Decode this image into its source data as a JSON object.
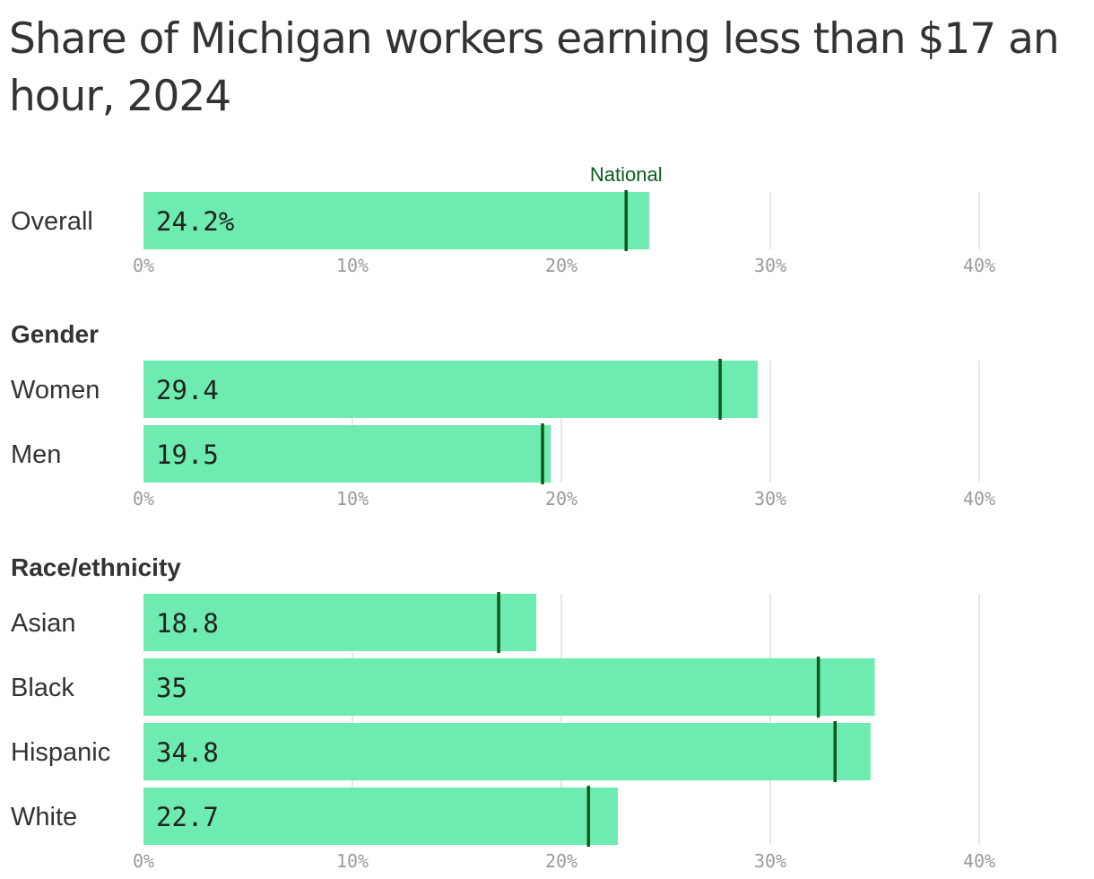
{
  "title": "Share of Michigan workers earning less than $17 an hour, 2024",
  "chart_data": {
    "type": "bar",
    "orientation": "horizontal",
    "title": "Share of Michigan workers earning less than $17 an hour, 2024",
    "xlim": [
      0,
      40
    ],
    "x_ticks": [
      "0%",
      "10%",
      "20%",
      "30%",
      "40%"
    ],
    "grid": true,
    "colors": {
      "bar": "#6eebb0",
      "national_marker": "#0b5a1e",
      "grid": "#dddddd",
      "tick": "#9a9a9a"
    },
    "marker_label": "National",
    "groups": [
      {
        "name": "",
        "items": [
          {
            "label": "Overall",
            "value": 24.2,
            "value_label": "24.2%",
            "national": 23.1
          }
        ]
      },
      {
        "name": "Gender",
        "items": [
          {
            "label": "Women",
            "value": 29.4,
            "value_label": "29.4",
            "national": 27.6
          },
          {
            "label": "Men",
            "value": 19.5,
            "value_label": "19.5",
            "national": 19.1
          }
        ]
      },
      {
        "name": "Race/ethnicity",
        "items": [
          {
            "label": "Asian",
            "value": 18.8,
            "value_label": "18.8",
            "national": 17.0
          },
          {
            "label": "Black",
            "value": 35,
            "value_label": "35",
            "national": 32.3
          },
          {
            "label": "Hispanic",
            "value": 34.8,
            "value_label": "34.8",
            "national": 33.1
          },
          {
            "label": "White",
            "value": 22.7,
            "value_label": "22.7",
            "national": 21.3
          }
        ]
      }
    ]
  }
}
